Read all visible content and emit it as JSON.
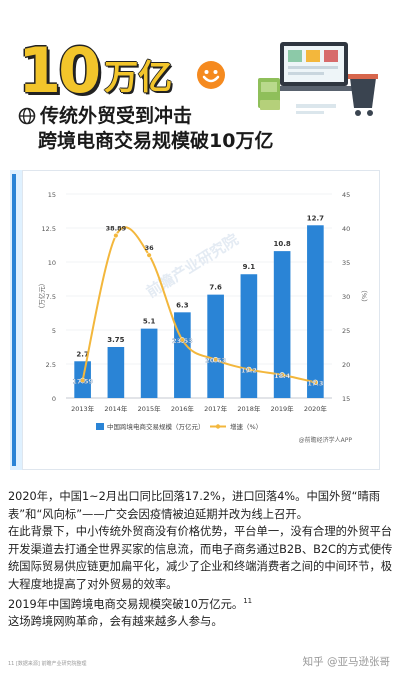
{
  "header": {
    "number": "10",
    "unit": "万亿",
    "headline_line1": "传统外贸受到冲击",
    "headline_line2": "跨境电商交易规模破10万亿"
  },
  "colors": {
    "bar": "#2a84d6",
    "line": "#f3b73c",
    "accent_yellow": "#f2c52b",
    "smile_orange": "#f58a1f"
  },
  "icons": [
    "globe-icon",
    "smiley-face-icon",
    "shopping-illustration-icon"
  ],
  "chart_data": {
    "type": "bar",
    "categories": [
      "2013年",
      "2014年",
      "2015年",
      "2016年",
      "2017年",
      "2018年",
      "2019年",
      "2020年"
    ],
    "series": [
      {
        "name": "中国跨境电商交易规模（万亿元）",
        "type": "bar",
        "axis": "left",
        "values": [
          2.7,
          3.75,
          5.1,
          6.3,
          7.6,
          9.1,
          10.8,
          12.7
        ],
        "labels": [
          "2.7",
          "3.75",
          "5.1",
          "6.3",
          "7.6",
          "9.1",
          "10.8",
          "12.7"
        ]
      },
      {
        "name": "增速（%）",
        "type": "line",
        "axis": "right",
        "values": [
          17.59,
          38.89,
          36,
          23.53,
          20.63,
          19.2,
          18.4,
          17.3
        ],
        "labels": [
          "17.59",
          "38.89",
          "36",
          "23.53",
          "20.63",
          "19.2",
          "18.4",
          "17.3"
        ]
      }
    ],
    "y_left": {
      "ticks": [
        "0",
        "2.5",
        "5",
        "7.5",
        "10",
        "12.5",
        "15"
      ],
      "range": [
        0,
        15
      ],
      "label": "（万亿元）"
    },
    "y_right": {
      "ticks": [
        "15",
        "20",
        "25",
        "30",
        "35",
        "40",
        "45"
      ],
      "range": [
        15,
        45
      ],
      "label": "（%）"
    },
    "source": "@前瞻经济学人APP",
    "watermark": "前瞻产业研究院",
    "legend_position": "bottom"
  },
  "article": {
    "p1": "2020年，中国1~2月出口同比回落17.2%，进口回落4%。中国外贸“晴雨表”和“风向标”——广交会因疫情被迫延期并改为线上召开。",
    "p2": "在此背景下，中小传统外贸商没有价格优势，平台单一，没有合理的外贸平台开发渠道去打通全世界买家的信息流，而电子商务通过B2B、B2C的方式使传统国际贸易供应链更加扁平化，减少了企业和终端消费者之间的中间环节，极大程度地提高了对外贸易的效率。",
    "p3": "2019年中国跨境电商交易规模突破10万亿元。",
    "p3_sup": "11",
    "p4": "这场跨境网购革命，会有越来越多人参与。"
  },
  "footer": {
    "note": "11 [数据来源] 前瞻产业研究院整理",
    "watermark": "知乎 @亚马逊张哥"
  }
}
